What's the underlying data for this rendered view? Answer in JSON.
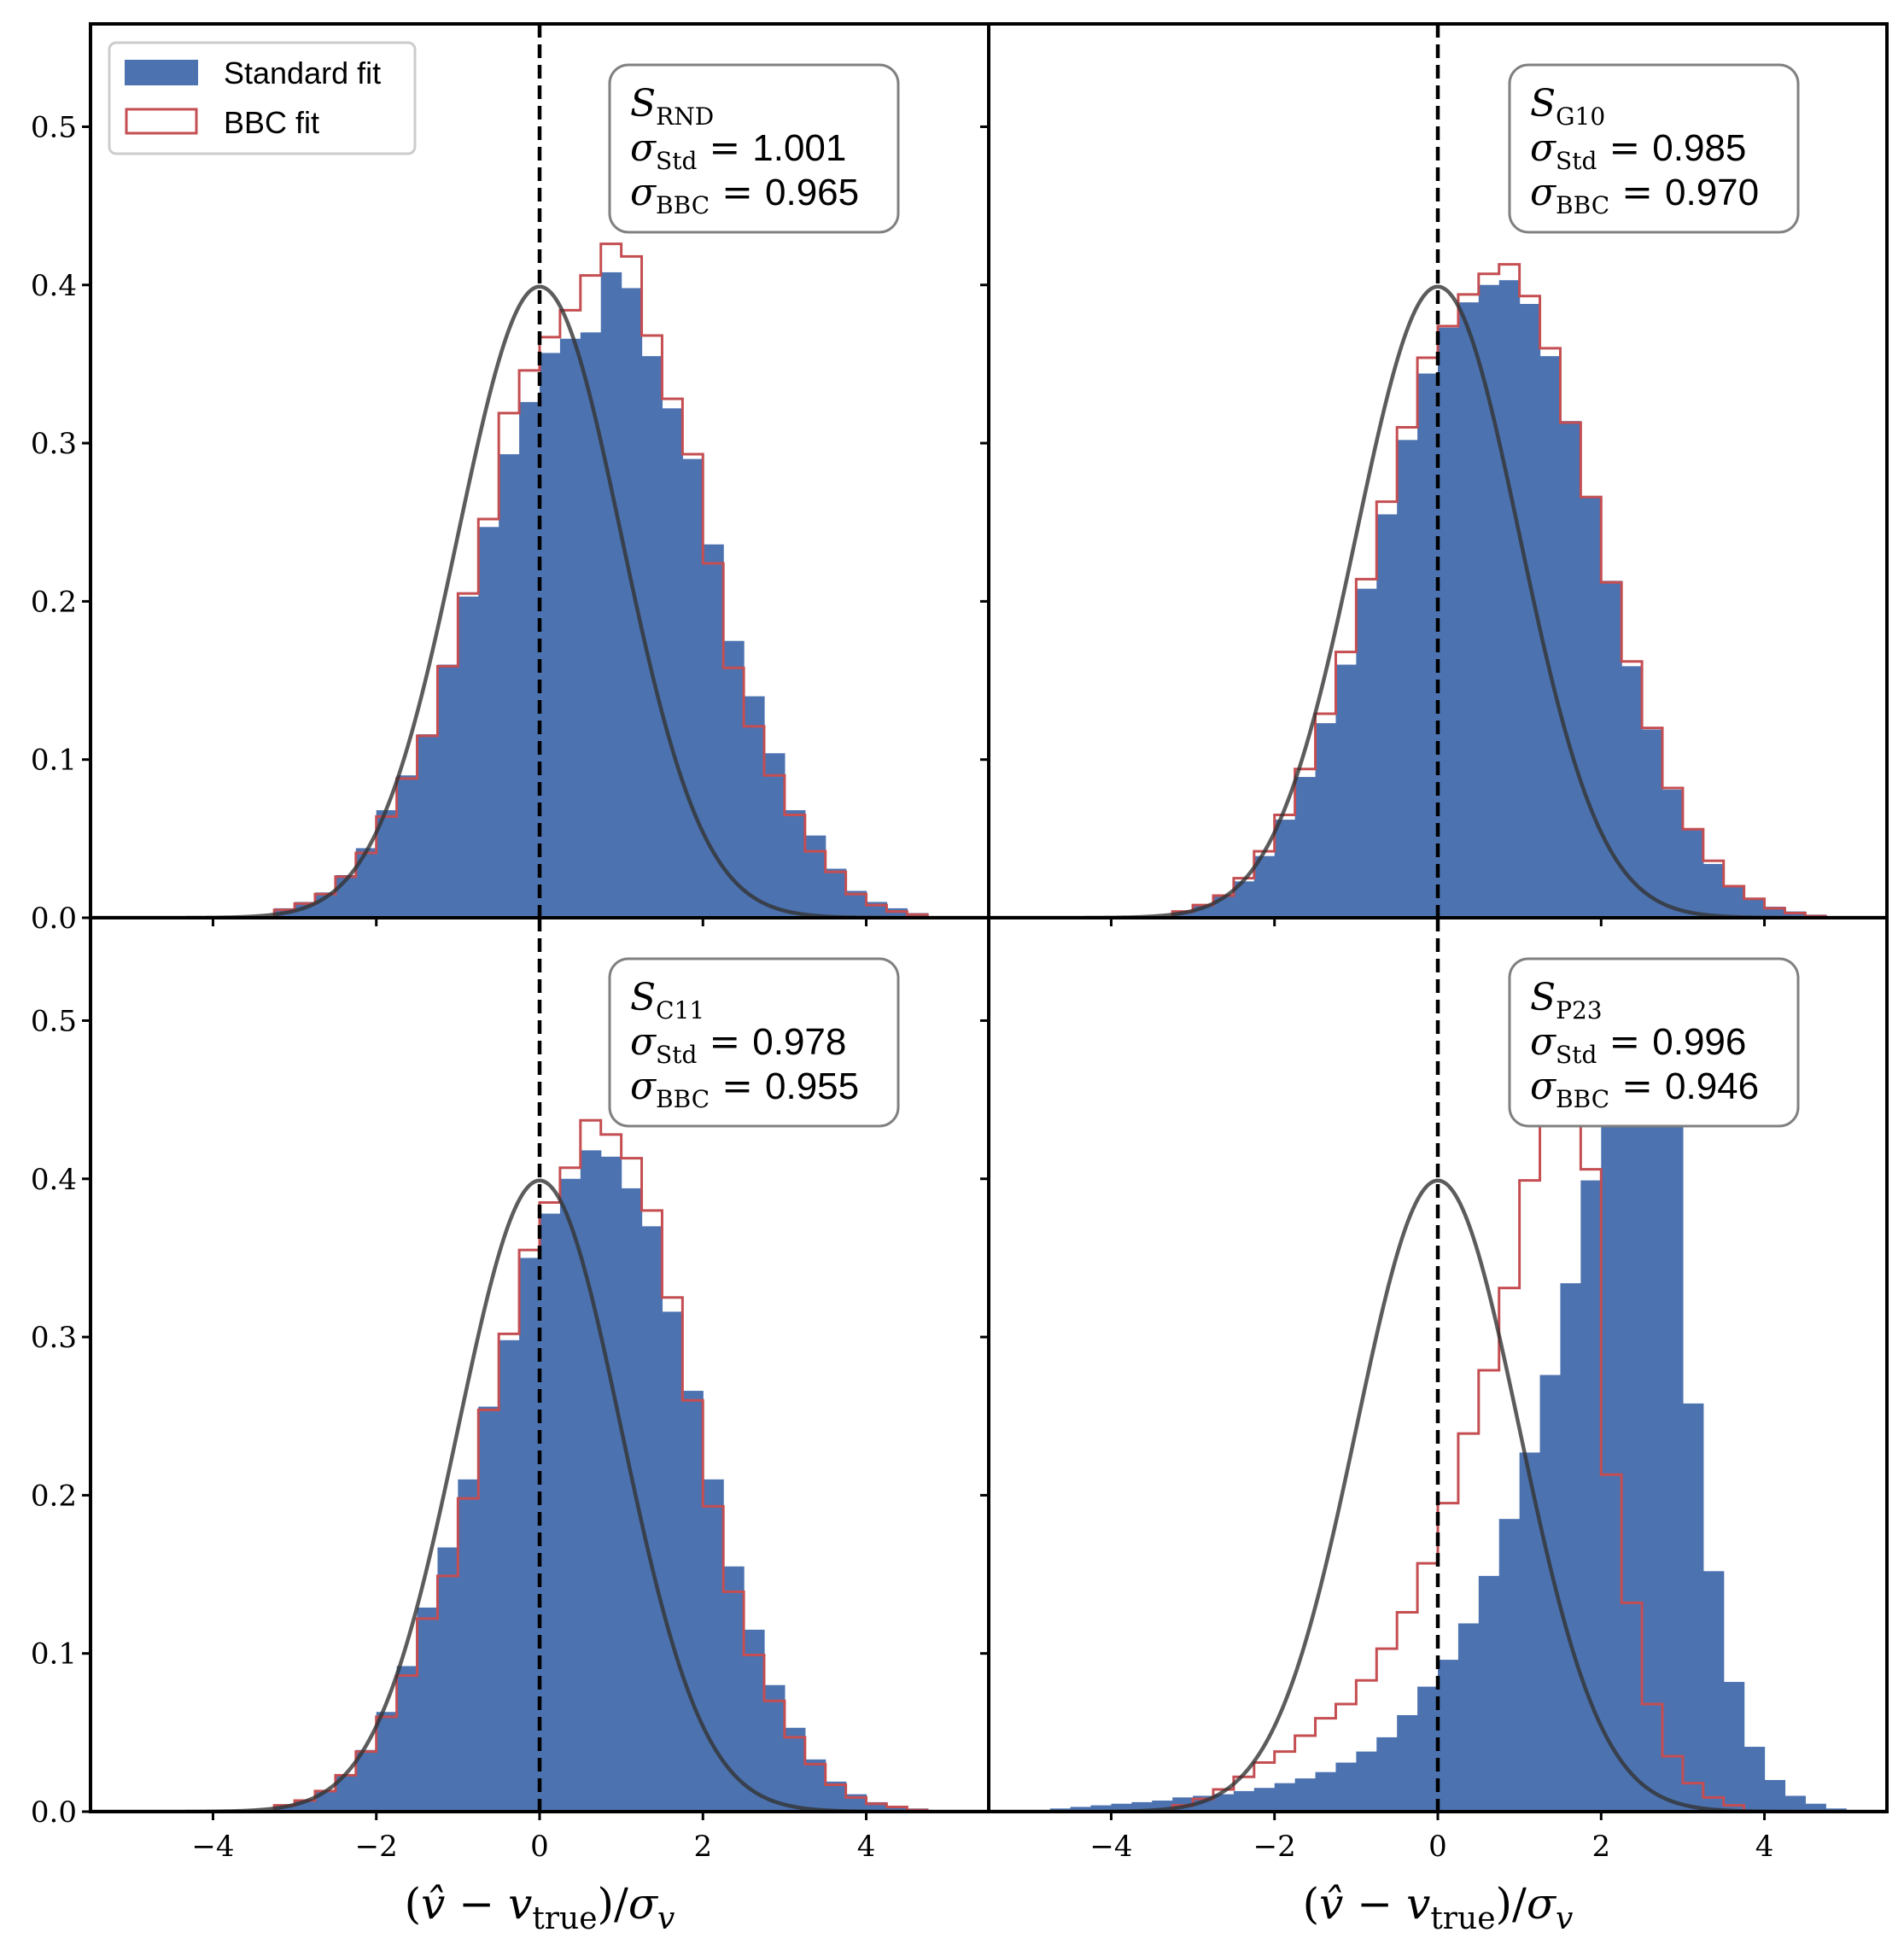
{
  "colors": {
    "standard_fill": "#4c72b0",
    "bbc_edge": "#c44e52",
    "gaussian": "#333333",
    "zero_line": "#000000",
    "box_edge": "#808080"
  },
  "legend": {
    "standard_label": "Standard fit",
    "bbc_label": "BBC fit",
    "placement": "upper-left"
  },
  "chart_data": [
    {
      "type": "histogram",
      "panel": "top-left",
      "box": {
        "S_symbol": "S",
        "S_sub": "RND",
        "sigma_symbol": "σ",
        "std_sub": "Std",
        "bbc_sub": "BBC",
        "equals": "=",
        "sigma_std": "1.001",
        "sigma_bbc": "0.965"
      },
      "xlim": [
        -5.5,
        5.5
      ],
      "ylim": [
        0,
        0.565
      ],
      "bin_width": 0.25,
      "std_start": -3.25,
      "standard": [
        0.006,
        0.01,
        0.016,
        0.027,
        0.044,
        0.068,
        0.09,
        0.116,
        0.16,
        0.203,
        0.247,
        0.293,
        0.326,
        0.357,
        0.366,
        0.37,
        0.408,
        0.398,
        0.355,
        0.322,
        0.29,
        0.236,
        0.175,
        0.14,
        0.104,
        0.068,
        0.052,
        0.031,
        0.017,
        0.01,
        0.006,
        0.003
      ],
      "bbc_start": -3.25,
      "bbc": [
        0.005,
        0.009,
        0.015,
        0.026,
        0.041,
        0.064,
        0.088,
        0.115,
        0.159,
        0.205,
        0.252,
        0.319,
        0.346,
        0.367,
        0.384,
        0.406,
        0.426,
        0.418,
        0.368,
        0.328,
        0.293,
        0.224,
        0.158,
        0.121,
        0.09,
        0.065,
        0.042,
        0.029,
        0.015,
        0.008,
        0.004,
        0.002
      ],
      "gaussian": {
        "mu": 0,
        "sigma": 1
      },
      "show_xticklabels": false,
      "show_yticklabels": true
    },
    {
      "type": "histogram",
      "panel": "top-right",
      "box": {
        "S_symbol": "S",
        "S_sub": "G10",
        "sigma_symbol": "σ",
        "std_sub": "Std",
        "bbc_sub": "BBC",
        "equals": "=",
        "sigma_std": "0.985",
        "sigma_bbc": "0.970"
      },
      "xlim": [
        -5.5,
        5.5
      ],
      "ylim": [
        0,
        0.565
      ],
      "bin_width": 0.25,
      "std_start": -3.25,
      "standard": [
        0.004,
        0.008,
        0.014,
        0.023,
        0.039,
        0.062,
        0.089,
        0.123,
        0.16,
        0.208,
        0.255,
        0.302,
        0.344,
        0.373,
        0.389,
        0.4,
        0.403,
        0.388,
        0.355,
        0.314,
        0.266,
        0.213,
        0.159,
        0.119,
        0.081,
        0.056,
        0.034,
        0.02,
        0.012,
        0.007,
        0.004,
        0.002
      ],
      "bbc_start": -3.25,
      "bbc": [
        0.004,
        0.008,
        0.014,
        0.025,
        0.042,
        0.065,
        0.094,
        0.129,
        0.168,
        0.214,
        0.263,
        0.31,
        0.354,
        0.374,
        0.394,
        0.407,
        0.413,
        0.393,
        0.36,
        0.313,
        0.266,
        0.212,
        0.162,
        0.12,
        0.082,
        0.056,
        0.036,
        0.02,
        0.012,
        0.006,
        0.003,
        0.001
      ],
      "gaussian": {
        "mu": 0,
        "sigma": 1
      },
      "show_xticklabels": false,
      "show_yticklabels": false
    },
    {
      "type": "histogram",
      "panel": "bottom-left",
      "box": {
        "S_symbol": "S",
        "S_sub": "C11",
        "sigma_symbol": "σ",
        "std_sub": "Std",
        "bbc_sub": "BBC",
        "equals": "=",
        "sigma_std": "0.978",
        "sigma_bbc": "0.955"
      },
      "xlim": [
        -5.5,
        5.5
      ],
      "ylim": [
        0,
        0.565
      ],
      "bin_width": 0.25,
      "std_start": -3.25,
      "standard": [
        0.004,
        0.007,
        0.013,
        0.023,
        0.039,
        0.063,
        0.092,
        0.129,
        0.167,
        0.21,
        0.256,
        0.298,
        0.35,
        0.378,
        0.4,
        0.418,
        0.414,
        0.394,
        0.37,
        0.316,
        0.266,
        0.21,
        0.155,
        0.115,
        0.08,
        0.053,
        0.033,
        0.019,
        0.011,
        0.006,
        0.003,
        0.002
      ],
      "bbc_start": -3.25,
      "bbc": [
        0.004,
        0.007,
        0.013,
        0.023,
        0.038,
        0.06,
        0.086,
        0.122,
        0.149,
        0.198,
        0.254,
        0.302,
        0.355,
        0.385,
        0.407,
        0.437,
        0.428,
        0.413,
        0.38,
        0.325,
        0.26,
        0.193,
        0.139,
        0.099,
        0.07,
        0.047,
        0.03,
        0.017,
        0.009,
        0.005,
        0.003,
        0.001
      ],
      "gaussian": {
        "mu": 0,
        "sigma": 1
      },
      "show_xticklabels": true,
      "show_yticklabels": true
    },
    {
      "type": "histogram",
      "panel": "bottom-right",
      "box": {
        "S_symbol": "S",
        "S_sub": "P23",
        "sigma_symbol": "σ",
        "std_sub": "Std",
        "bbc_sub": "BBC",
        "equals": "=",
        "sigma_std": "0.996",
        "sigma_bbc": "0.946"
      },
      "xlim": [
        -5.5,
        5.5
      ],
      "ylim": [
        0,
        0.565
      ],
      "bin_width": 0.25,
      "std_start": -4.75,
      "standard": [
        0.002,
        0.003,
        0.004,
        0.005,
        0.006,
        0.007,
        0.009,
        0.01,
        0.011,
        0.013,
        0.015,
        0.018,
        0.021,
        0.025,
        0.031,
        0.038,
        0.047,
        0.061,
        0.079,
        0.096,
        0.119,
        0.149,
        0.185,
        0.227,
        0.276,
        0.334,
        0.399,
        0.433,
        0.512,
        0.493,
        0.433,
        0.258,
        0.152,
        0.082,
        0.041,
        0.02,
        0.01,
        0.005,
        0.002
      ],
      "bbc_start": -3.25,
      "bbc": [
        0.004,
        0.008,
        0.014,
        0.022,
        0.031,
        0.038,
        0.048,
        0.059,
        0.068,
        0.083,
        0.103,
        0.126,
        0.157,
        0.195,
        0.239,
        0.279,
        0.331,
        0.399,
        0.468,
        0.496,
        0.406,
        0.213,
        0.132,
        0.068,
        0.035,
        0.018,
        0.009,
        0.004
      ],
      "gaussian": {
        "mu": 0,
        "sigma": 1
      },
      "show_xticklabels": true,
      "show_yticklabels": false
    }
  ],
  "axes": {
    "xlabel_parts": [
      "(",
      "v",
      "−",
      "v",
      "true",
      ")/",
      "σ",
      "v"
    ],
    "xticks": [
      "−4",
      "−2",
      "0",
      "2",
      "4"
    ],
    "xtick_values": [
      -4,
      -2,
      0,
      2,
      4
    ],
    "yticks": [
      "0.0",
      "0.1",
      "0.2",
      "0.3",
      "0.4",
      "0.5"
    ],
    "ytick_values": [
      0,
      0.1,
      0.2,
      0.3,
      0.4,
      0.5
    ]
  }
}
